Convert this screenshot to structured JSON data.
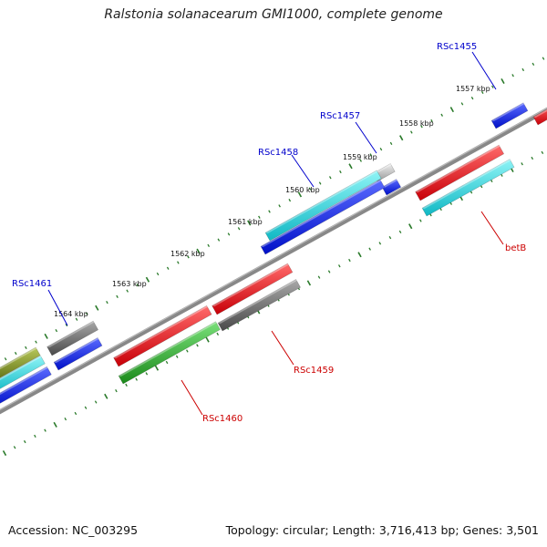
{
  "title": "Ralstonia solanacearum GMI1000, complete genome",
  "footer": {
    "accession": "Accession: NC_003295",
    "summary": "Topology: circular; Length: 3,716,413 bp; Genes: 3,501"
  },
  "scale_ticks": [
    {
      "label": "1557 kbp"
    },
    {
      "label": "1558 kbp"
    },
    {
      "label": "1559 kbp"
    },
    {
      "label": "1560 kbp"
    },
    {
      "label": "1561 kbp"
    },
    {
      "label": "1562 kbp"
    },
    {
      "label": "1563 kbp"
    },
    {
      "label": "1564 kbp"
    }
  ],
  "gene_labels": [
    {
      "name": "RSc1455",
      "strand": "forward"
    },
    {
      "name": "RSc1457",
      "strand": "forward"
    },
    {
      "name": "RSc1458",
      "strand": "forward"
    },
    {
      "name": "RSc1461",
      "strand": "forward"
    },
    {
      "name": "betB",
      "strand": "reverse"
    },
    {
      "name": "RSc1459",
      "strand": "reverse"
    },
    {
      "name": "RSc1460",
      "strand": "reverse"
    }
  ],
  "colors": {
    "forward_label": "#0000cc",
    "reverse_label": "#cc0000",
    "backbone": "#808080",
    "tick_marks": "#2a7a2a",
    "blue": "#0a1ee6",
    "cyan": "#22d0d8",
    "red": "#e8101a",
    "grey": "#6a6a6a",
    "lightgrey": "#bcbcbc",
    "green": "#2aa82a",
    "olive": "#7a8a1a"
  }
}
